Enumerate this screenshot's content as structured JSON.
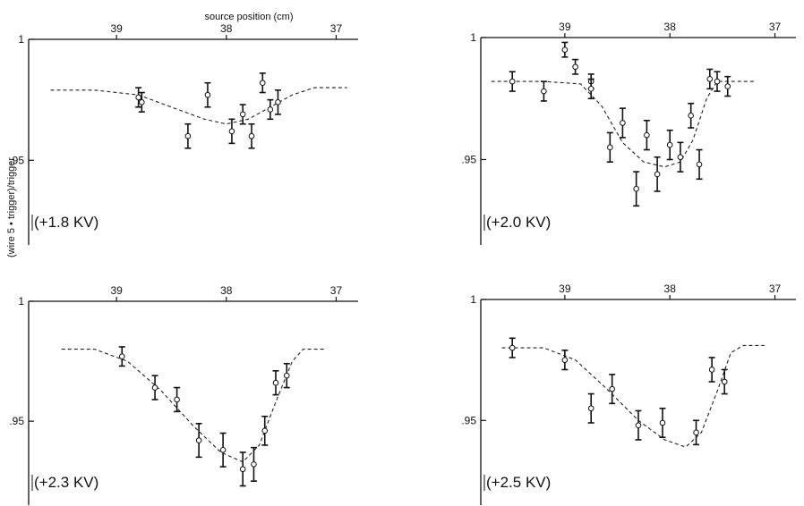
{
  "figure": {
    "top_axis_label": "source position (cm)",
    "left_axis_label": "(wire 5 • trigger)/trigger"
  },
  "chart_data": [
    {
      "type": "scatter",
      "annotation": "(+1.8 KV)",
      "x_reversed": true,
      "xlim": [
        39.8,
        36.8
      ],
      "ylim": [
        0.915,
        1.0
      ],
      "x_ticks": [
        39,
        38,
        37
      ],
      "x_tick_labels": [
        "39",
        "38",
        "37"
      ],
      "y_ticks": [
        1.0,
        0.95
      ],
      "y_tick_labels": [
        "1",
        ".95"
      ],
      "points": [
        {
          "x": 38.8,
          "y": 0.976,
          "err": 0.004
        },
        {
          "x": 38.77,
          "y": 0.974,
          "err": 0.004
        },
        {
          "x": 38.35,
          "y": 0.96,
          "err": 0.005
        },
        {
          "x": 38.17,
          "y": 0.977,
          "err": 0.005
        },
        {
          "x": 37.95,
          "y": 0.962,
          "err": 0.005
        },
        {
          "x": 37.85,
          "y": 0.969,
          "err": 0.004
        },
        {
          "x": 37.77,
          "y": 0.96,
          "err": 0.005
        },
        {
          "x": 37.67,
          "y": 0.982,
          "err": 0.004
        },
        {
          "x": 37.6,
          "y": 0.971,
          "err": 0.004
        },
        {
          "x": 37.53,
          "y": 0.974,
          "err": 0.005
        }
      ],
      "fit_curve": [
        {
          "x": 39.6,
          "y": 0.979
        },
        {
          "x": 39.2,
          "y": 0.979
        },
        {
          "x": 38.8,
          "y": 0.977
        },
        {
          "x": 38.5,
          "y": 0.972
        },
        {
          "x": 38.2,
          "y": 0.967
        },
        {
          "x": 38.0,
          "y": 0.965
        },
        {
          "x": 37.8,
          "y": 0.967
        },
        {
          "x": 37.6,
          "y": 0.972
        },
        {
          "x": 37.4,
          "y": 0.977
        },
        {
          "x": 37.2,
          "y": 0.98
        },
        {
          "x": 36.9,
          "y": 0.98
        }
      ]
    },
    {
      "type": "scatter",
      "annotation": "(+2.0 KV)",
      "x_reversed": true,
      "xlim": [
        39.8,
        36.8
      ],
      "ylim": [
        0.915,
        1.0
      ],
      "x_ticks": [
        39,
        38,
        37
      ],
      "x_tick_labels": [
        "39",
        "38",
        "37"
      ],
      "y_ticks": [
        1.0,
        0.95
      ],
      "y_tick_labels": [
        "1",
        ".95"
      ],
      "points": [
        {
          "x": 39.5,
          "y": 0.982,
          "err": 0.004
        },
        {
          "x": 39.2,
          "y": 0.978,
          "err": 0.004
        },
        {
          "x": 39.0,
          "y": 0.995,
          "err": 0.003
        },
        {
          "x": 38.9,
          "y": 0.988,
          "err": 0.003
        },
        {
          "x": 38.75,
          "y": 0.982,
          "err": 0.003
        },
        {
          "x": 38.75,
          "y": 0.979,
          "err": 0.004
        },
        {
          "x": 38.57,
          "y": 0.955,
          "err": 0.006
        },
        {
          "x": 38.45,
          "y": 0.965,
          "err": 0.006
        },
        {
          "x": 38.32,
          "y": 0.938,
          "err": 0.007
        },
        {
          "x": 38.22,
          "y": 0.96,
          "err": 0.006
        },
        {
          "x": 38.12,
          "y": 0.944,
          "err": 0.007
        },
        {
          "x": 38.0,
          "y": 0.956,
          "err": 0.006
        },
        {
          "x": 37.9,
          "y": 0.951,
          "err": 0.006
        },
        {
          "x": 37.8,
          "y": 0.968,
          "err": 0.005
        },
        {
          "x": 37.72,
          "y": 0.948,
          "err": 0.006
        },
        {
          "x": 37.62,
          "y": 0.983,
          "err": 0.004
        },
        {
          "x": 37.55,
          "y": 0.982,
          "err": 0.004
        },
        {
          "x": 37.45,
          "y": 0.98,
          "err": 0.004
        }
      ],
      "fit_curve": [
        {
          "x": 39.7,
          "y": 0.982
        },
        {
          "x": 39.2,
          "y": 0.982
        },
        {
          "x": 38.85,
          "y": 0.981
        },
        {
          "x": 38.65,
          "y": 0.972
        },
        {
          "x": 38.45,
          "y": 0.957
        },
        {
          "x": 38.25,
          "y": 0.949
        },
        {
          "x": 38.05,
          "y": 0.947
        },
        {
          "x": 37.9,
          "y": 0.949
        },
        {
          "x": 37.78,
          "y": 0.958
        },
        {
          "x": 37.65,
          "y": 0.975
        },
        {
          "x": 37.55,
          "y": 0.982
        },
        {
          "x": 37.2,
          "y": 0.982
        }
      ]
    },
    {
      "type": "scatter",
      "annotation": "(+2.3 KV)",
      "x_reversed": true,
      "xlim": [
        39.8,
        36.8
      ],
      "ylim": [
        0.915,
        1.0
      ],
      "x_ticks": [
        39,
        38,
        37
      ],
      "x_tick_labels": [
        "39",
        "38",
        "37"
      ],
      "y_ticks": [
        1.0,
        0.95
      ],
      "y_tick_labels": [
        "1",
        ".95"
      ],
      "points": [
        {
          "x": 38.95,
          "y": 0.977,
          "err": 0.004
        },
        {
          "x": 38.65,
          "y": 0.964,
          "err": 0.005
        },
        {
          "x": 38.45,
          "y": 0.959,
          "err": 0.005
        },
        {
          "x": 38.25,
          "y": 0.942,
          "err": 0.007
        },
        {
          "x": 38.03,
          "y": 0.938,
          "err": 0.007
        },
        {
          "x": 37.85,
          "y": 0.93,
          "err": 0.007
        },
        {
          "x": 37.75,
          "y": 0.932,
          "err": 0.007
        },
        {
          "x": 37.65,
          "y": 0.946,
          "err": 0.006
        },
        {
          "x": 37.55,
          "y": 0.966,
          "err": 0.005
        },
        {
          "x": 37.45,
          "y": 0.969,
          "err": 0.005
        }
      ],
      "fit_curve": [
        {
          "x": 39.5,
          "y": 0.98
        },
        {
          "x": 39.2,
          "y": 0.98
        },
        {
          "x": 38.9,
          "y": 0.975
        },
        {
          "x": 38.6,
          "y": 0.963
        },
        {
          "x": 38.3,
          "y": 0.948
        },
        {
          "x": 38.05,
          "y": 0.937
        },
        {
          "x": 37.85,
          "y": 0.933
        },
        {
          "x": 37.7,
          "y": 0.94
        },
        {
          "x": 37.55,
          "y": 0.958
        },
        {
          "x": 37.4,
          "y": 0.975
        },
        {
          "x": 37.3,
          "y": 0.98
        },
        {
          "x": 37.1,
          "y": 0.98
        }
      ]
    },
    {
      "type": "scatter",
      "annotation": "(+2.5 KV)",
      "x_reversed": true,
      "xlim": [
        39.8,
        36.8
      ],
      "ylim": [
        0.915,
        1.0
      ],
      "x_ticks": [
        39,
        38,
        37
      ],
      "x_tick_labels": [
        "39",
        "38",
        "37"
      ],
      "y_ticks": [
        1.0,
        0.95
      ],
      "y_tick_labels": [
        "1",
        ".95"
      ],
      "points": [
        {
          "x": 39.5,
          "y": 0.98,
          "err": 0.004
        },
        {
          "x": 39.0,
          "y": 0.975,
          "err": 0.004
        },
        {
          "x": 38.75,
          "y": 0.955,
          "err": 0.006
        },
        {
          "x": 38.55,
          "y": 0.963,
          "err": 0.006
        },
        {
          "x": 38.3,
          "y": 0.948,
          "err": 0.006
        },
        {
          "x": 38.07,
          "y": 0.949,
          "err": 0.006
        },
        {
          "x": 37.75,
          "y": 0.945,
          "err": 0.005
        },
        {
          "x": 37.6,
          "y": 0.971,
          "err": 0.005
        },
        {
          "x": 37.48,
          "y": 0.966,
          "err": 0.005
        }
      ],
      "fit_curve": [
        {
          "x": 39.6,
          "y": 0.98
        },
        {
          "x": 39.2,
          "y": 0.98
        },
        {
          "x": 38.9,
          "y": 0.975
        },
        {
          "x": 38.6,
          "y": 0.963
        },
        {
          "x": 38.3,
          "y": 0.95
        },
        {
          "x": 38.05,
          "y": 0.942
        },
        {
          "x": 37.85,
          "y": 0.939
        },
        {
          "x": 37.7,
          "y": 0.945
        },
        {
          "x": 37.55,
          "y": 0.962
        },
        {
          "x": 37.42,
          "y": 0.978
        },
        {
          "x": 37.3,
          "y": 0.981
        },
        {
          "x": 37.1,
          "y": 0.981
        }
      ]
    }
  ]
}
